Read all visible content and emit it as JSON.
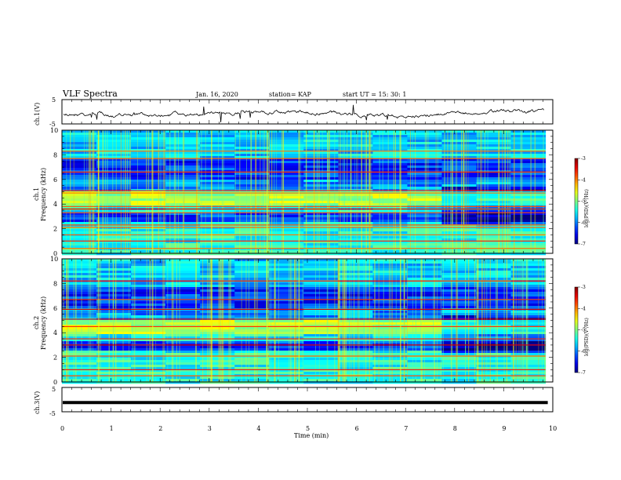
{
  "header": {
    "title": "VLF Spectra",
    "date": "Jan. 16, 2020",
    "station": "station= KAP",
    "start": "start  UT =   15: 30: 1"
  },
  "chart_data": [
    {
      "type": "line",
      "ylabel": "ch.1(V)",
      "ylim": [
        -5,
        5
      ],
      "yticks": [
        "5",
        "-5"
      ],
      "xlim": [
        0,
        10
      ],
      "series": [
        {
          "values_description_free": true
        }
      ]
    },
    {
      "type": "heatmap",
      "ylabel_line1": "ch.1",
      "ylabel_line2": "Frequency (kHz)",
      "xlim": [
        0,
        10
      ],
      "ylim": [
        0,
        10
      ],
      "yticks": [
        "0",
        "2",
        "4",
        "6",
        "8",
        "10"
      ],
      "colorbar": {
        "label": "log(PSD)(V²/Hz)",
        "range": [
          -7,
          -3
        ],
        "ticks": [
          "-3",
          "-4",
          "-5",
          "-6",
          "-7"
        ]
      },
      "bands_khz": [
        0.4,
        1.0,
        1.5,
        2.1,
        2.3,
        3.3,
        3.6,
        3.8,
        4.9,
        5.1,
        6.6,
        7.7,
        8.3
      ]
    },
    {
      "type": "heatmap",
      "ylabel_line1": "ch.2",
      "ylabel_line2": "Frequency (kHz)",
      "xlim": [
        0,
        10
      ],
      "ylim": [
        0,
        10
      ],
      "yticks": [
        "0",
        "2",
        "4",
        "6",
        "8",
        "10"
      ],
      "colorbar": {
        "label": "log(PSD)(V²/Hz)",
        "range": [
          -7,
          -3
        ],
        "ticks": [
          "-3",
          "-4",
          "-5",
          "-6",
          "-7"
        ]
      },
      "bands_khz": [
        0.5,
        1.0,
        2.1,
        3.0,
        3.5,
        4.5,
        5.1,
        5.9,
        6.7,
        8.2
      ]
    },
    {
      "type": "line",
      "ylabel": "ch.3(V)",
      "ylim": [
        -5,
        5
      ],
      "yticks": [
        "5",
        "-5"
      ],
      "xlim": [
        0,
        10
      ],
      "series": [
        {
          "values": [
            -1.2,
            -1.2
          ]
        }
      ]
    }
  ],
  "xaxis": {
    "label": "Time (min)",
    "ticks": [
      "0",
      "1",
      "2",
      "3",
      "4",
      "5",
      "6",
      "7",
      "8",
      "9",
      "10"
    ],
    "data_end": 9.85
  }
}
